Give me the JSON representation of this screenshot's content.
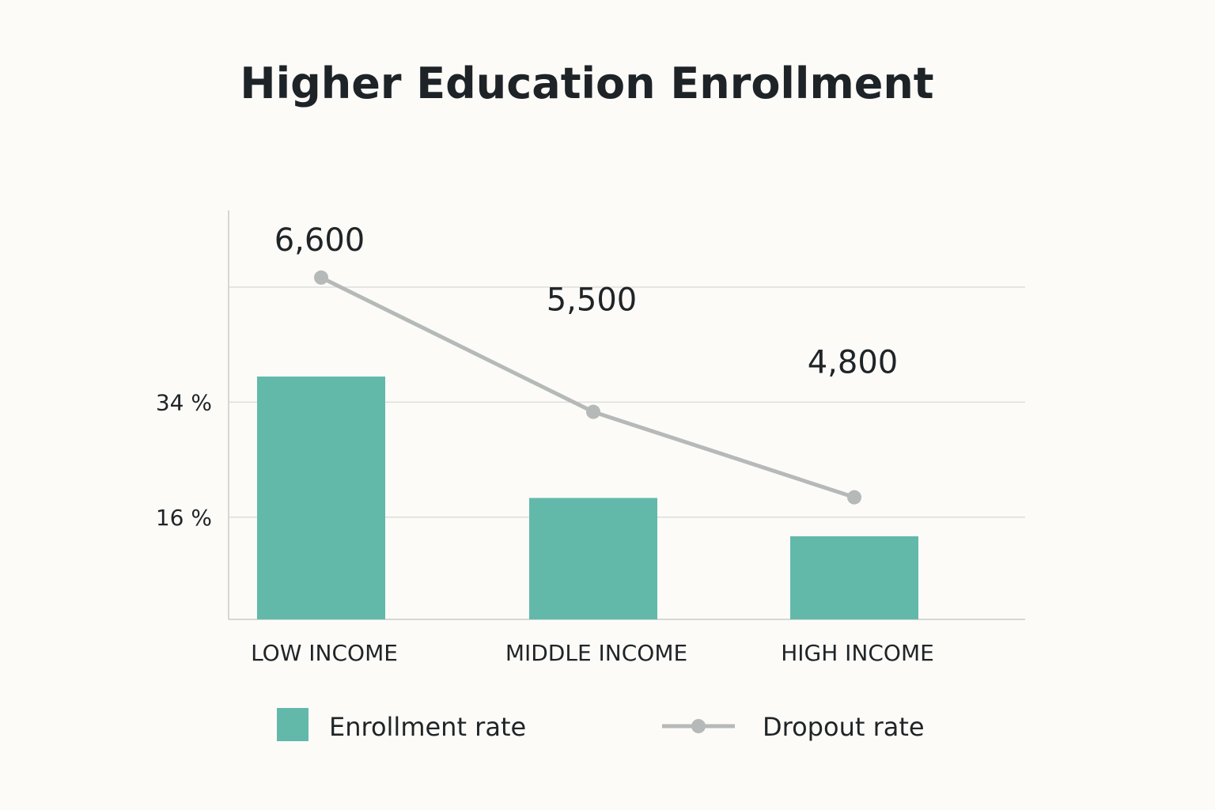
{
  "chart_data": {
    "type": "bar",
    "title": "Higher Education Enrollment",
    "categories": [
      "LOW INCOME",
      "MIDDLE INCOME",
      "HIGH INCOME"
    ],
    "series": [
      {
        "name": "Enrollment rate",
        "kind": "bar",
        "values": [
          38,
          19,
          13
        ],
        "color": "#62b9aa"
      },
      {
        "name": "Dropout rate",
        "kind": "line",
        "values": [
          6600,
          5500,
          4800
        ],
        "labels": [
          "6,600",
          "5,500",
          "4,800"
        ],
        "color": "#b5b9b7"
      }
    ],
    "y_ticks": [
      {
        "value": 34,
        "label": "34 %"
      },
      {
        "value": 16,
        "label": "16 %"
      }
    ],
    "gridlines": [
      16,
      34,
      52
    ],
    "ylim": [
      0,
      64
    ],
    "line_ylim": [
      3800,
      7150
    ],
    "legend_position": "bottom",
    "grid": true
  }
}
